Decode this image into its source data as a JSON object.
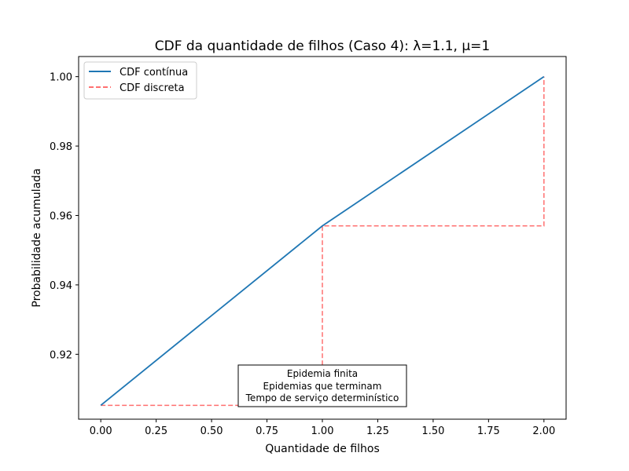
{
  "chart_data": {
    "type": "line",
    "title": "CDF da quantidade de filhos (Caso 4): λ=1.1, μ=1",
    "xlabel": "Quantidade de filhos",
    "ylabel": "Probabilidade acumulada",
    "xlim": [
      -0.1,
      2.1
    ],
    "ylim": [
      0.9013,
      1.0058
    ],
    "xticks": [
      0.0,
      0.25,
      0.5,
      0.75,
      1.0,
      1.25,
      1.5,
      1.75,
      2.0
    ],
    "xtick_labels": [
      "0.00",
      "0.25",
      "0.50",
      "0.75",
      "1.00",
      "1.25",
      "1.50",
      "1.75",
      "2.00"
    ],
    "yticks": [
      0.92,
      0.94,
      0.96,
      0.98,
      1.0
    ],
    "ytick_labels": [
      "0.92",
      "0.94",
      "0.96",
      "0.98",
      "1.00"
    ],
    "grid": false,
    "legend_position": "top-left",
    "series": [
      {
        "name": "CDF contínua",
        "style": "solid",
        "color": "#1f77b4",
        "x": [
          0,
          1,
          2
        ],
        "y": [
          0.9053,
          0.957,
          1.0
        ]
      },
      {
        "name": "CDF discreta",
        "style": "dashed",
        "color": "#ff7070",
        "step": true,
        "x": [
          0,
          1,
          2
        ],
        "y": [
          0.9053,
          0.957,
          1.0
        ]
      }
    ],
    "annotation": {
      "lines": [
        "Epidemia finita",
        "Epidemias que terminam",
        "Tempo de serviço determinístico"
      ]
    }
  }
}
